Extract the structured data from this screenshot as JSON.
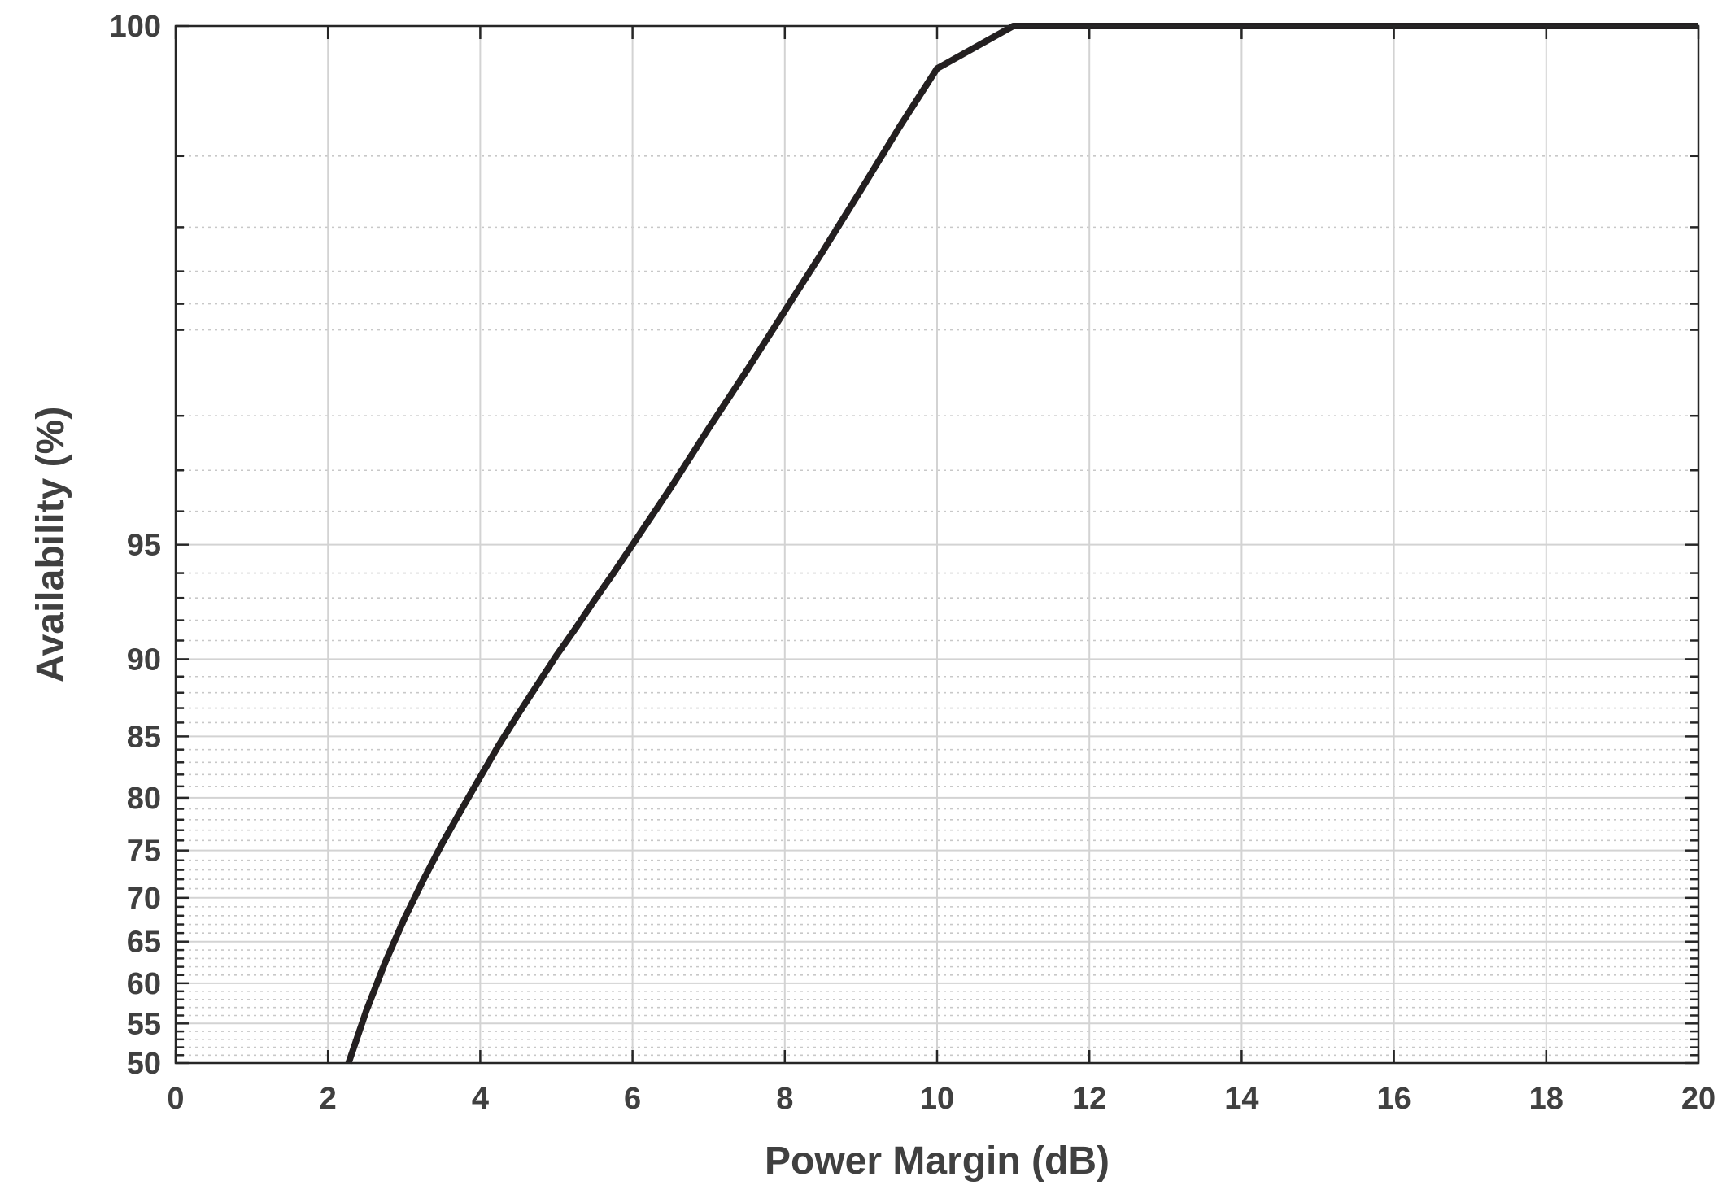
{
  "chart_data": {
    "type": "line",
    "title": "",
    "xlabel": "Power Margin (dB)",
    "ylabel": "Availability (%)",
    "xlim": [
      0,
      20
    ],
    "ylim": [
      50,
      100
    ],
    "x_scale": "linear",
    "y_scale": "normal-probability",
    "x_ticks": [
      0,
      2,
      4,
      6,
      8,
      10,
      12,
      14,
      16,
      18,
      20
    ],
    "x_tick_labels": [
      "0",
      "2",
      "4",
      "6",
      "8",
      "10",
      "12",
      "14",
      "16",
      "18",
      "20"
    ],
    "y_ticks": [
      50,
      55,
      60,
      65,
      70,
      75,
      80,
      85,
      90,
      95,
      100
    ],
    "y_tick_labels": [
      "50",
      "55",
      "60",
      "65",
      "70",
      "75",
      "80",
      "85",
      "90",
      "95",
      "100"
    ],
    "grid": true,
    "minor_grid": true,
    "legend": "none",
    "series": [
      {
        "color": "#231f20",
        "x": [
          2.27,
          2.5,
          2.75,
          3.0,
          3.25,
          3.5,
          3.75,
          4.0,
          4.25,
          4.5,
          4.75,
          5.0,
          5.25,
          5.5,
          5.75,
          6.0,
          6.5,
          7.0,
          7.5,
          8.0,
          8.5,
          9.0,
          9.5,
          10.0,
          11.0,
          12.0,
          14.0,
          16.0,
          18.0,
          20.0
        ],
        "values": [
          50.0,
          56.5,
          62.5,
          67.6,
          71.9,
          75.7,
          78.9,
          81.8,
          84.4,
          86.6,
          88.5,
          90.2,
          91.6,
          92.9,
          94.0,
          95.0,
          96.6,
          97.8,
          98.6,
          99.15,
          99.5,
          99.72,
          99.85,
          99.92,
          99.98,
          99.995,
          99.999,
          99.9999,
          99.99999,
          99.999999
        ]
      }
    ]
  }
}
